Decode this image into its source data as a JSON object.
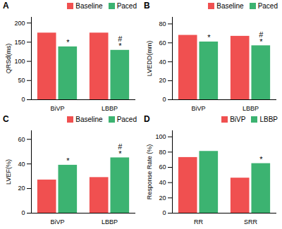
{
  "chart_data": [
    {
      "type": "bar",
      "title": "A",
      "ylabel": "QRSd(ms)",
      "categories": [
        "BiVP",
        "LBBP"
      ],
      "series": [
        {
          "name": "Baseline",
          "color": "#F05050",
          "values": [
            174,
            174
          ]
        },
        {
          "name": "Paced",
          "color": "#3CB371",
          "values": [
            138,
            129
          ],
          "annotations": [
            "*",
            "#\n*"
          ]
        }
      ],
      "ylim": [
        0,
        215
      ],
      "yticks": [
        0,
        50,
        100,
        150,
        200
      ],
      "legend": "upper right",
      "grid": false
    },
    {
      "type": "bar",
      "title": "B",
      "ylabel": "LVEDD(mm)",
      "categories": [
        "BiVP",
        "LBBP"
      ],
      "series": [
        {
          "name": "Baseline",
          "color": "#F05050",
          "values": [
            68,
            67
          ]
        },
        {
          "name": "Paced",
          "color": "#3CB371",
          "values": [
            61,
            57
          ],
          "annotations": [
            "*",
            "#\n*"
          ]
        }
      ],
      "ylim": [
        0,
        87
      ],
      "yticks": [
        0,
        20,
        40,
        60,
        80
      ],
      "legend": "upper right",
      "grid": false
    },
    {
      "type": "bar",
      "title": "C",
      "ylabel": "LVEF(%)",
      "categories": [
        "BiVP",
        "LBBP"
      ],
      "series": [
        {
          "name": "Baseline",
          "color": "#F05050",
          "values": [
            27,
            29
          ]
        },
        {
          "name": "Paced",
          "color": "#3CB371",
          "values": [
            39,
            45
          ],
          "annotations": [
            "*",
            "#\n*"
          ]
        }
      ],
      "ylim": [
        0,
        67
      ],
      "yticks": [
        0,
        20,
        40,
        60
      ],
      "legend": "upper right",
      "grid": false
    },
    {
      "type": "bar",
      "title": "D",
      "ylabel": "Response Rate (%)",
      "categories": [
        "RR",
        "SRR"
      ],
      "series": [
        {
          "name": "BiVP",
          "color": "#F05050",
          "values": [
            73,
            46
          ]
        },
        {
          "name": "LBBP",
          "color": "#3CB371",
          "values": [
            81,
            65
          ],
          "annotations": [
            null,
            "*"
          ]
        }
      ],
      "ylim": [
        0,
        108
      ],
      "yticks": [
        0,
        20,
        40,
        60,
        80,
        100
      ],
      "legend": "upper right",
      "grid": false
    }
  ]
}
